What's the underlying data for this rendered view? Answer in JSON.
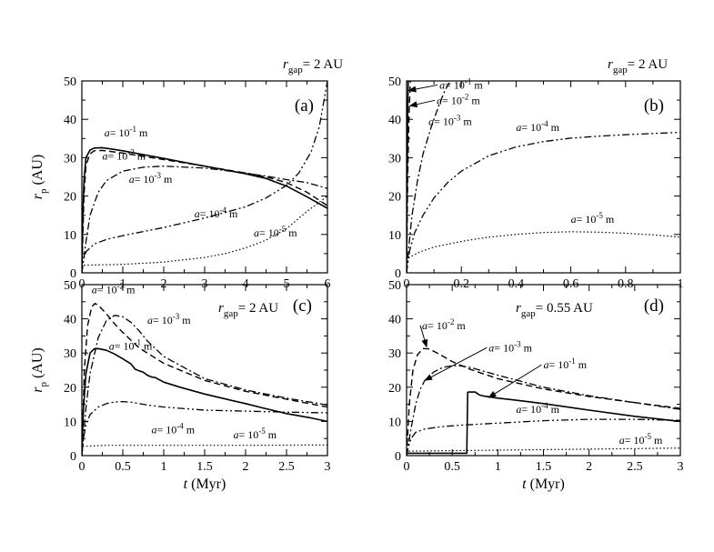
{
  "chart_data": [
    {
      "id": "a",
      "type": "line",
      "panel_label": "(a)",
      "rgap_label": "= 2 AU",
      "xlabel_var": "t",
      "xlabel_unit": "(Myr)",
      "ylabel_var": "r",
      "ylabel_sub": "p",
      "ylabel_unit": "(AU)",
      "xlim": [
        0,
        6
      ],
      "ylim": [
        0,
        50
      ],
      "xticks": [
        0,
        1,
        2,
        3,
        4,
        5,
        6
      ],
      "yticks": [
        0,
        10,
        20,
        30,
        40,
        50
      ],
      "show_xlabel": false,
      "show_ylabel": true,
      "series": [
        {
          "style": "solid",
          "x": [
            0,
            0.02,
            0.05,
            0.1,
            0.2,
            0.3,
            0.5,
            1,
            1.5,
            2,
            2.5,
            3,
            3.5,
            4,
            4.5,
            5,
            5.5,
            6
          ],
          "y": [
            0,
            14,
            24,
            30,
            32,
            32.5,
            32.6,
            31.8,
            30.8,
            29.8,
            28.8,
            27.8,
            26.8,
            25.8,
            24.6,
            22.6,
            19.8,
            16.8
          ]
        },
        {
          "style": "dashed",
          "x": [
            0,
            0.05,
            0.1,
            0.2,
            0.3,
            0.5,
            1,
            2,
            3,
            4,
            4.5,
            5,
            5.5,
            6
          ],
          "y": [
            0,
            20,
            28,
            31,
            31.8,
            31.9,
            31.2,
            29.5,
            27.8,
            26,
            25,
            23.5,
            21,
            17.5
          ]
        },
        {
          "style": "dashdot",
          "x": [
            0,
            0.05,
            0.1,
            0.2,
            0.4,
            0.6,
            1,
            1.5,
            2,
            3,
            4,
            4.5,
            5,
            5.5,
            6
          ],
          "y": [
            0,
            4,
            8,
            15,
            21,
            24,
            26.5,
            27.5,
            27.8,
            27.3,
            26,
            25.2,
            24.3,
            23.5,
            22
          ]
        },
        {
          "style": "dashdotdot",
          "x": [
            0,
            0.03,
            0.1,
            0.3,
            0.6,
            1,
            2,
            3,
            4,
            4.5,
            5,
            5.3,
            5.6,
            5.8,
            6
          ],
          "y": [
            0,
            3,
            5.5,
            7.5,
            8.7,
            9.7,
            11.8,
            14.3,
            17.2,
            19.5,
            22.8,
            26,
            31.5,
            38,
            50
          ]
        },
        {
          "style": "dotted",
          "x": [
            0,
            0.05,
            1,
            2,
            3,
            3.5,
            4,
            4.5,
            5,
            5.5,
            6
          ],
          "y": [
            1.2,
            2,
            2.2,
            2.8,
            4,
            5,
            6.5,
            8.5,
            11.5,
            16,
            20
          ]
        }
      ],
      "annotations": [
        {
          "pre": "a",
          "base": "= 10",
          "exp": "-1",
          "unit": " m",
          "x": 0.55,
          "y": 35.5
        },
        {
          "pre": "a",
          "base": "= 10",
          "exp": "-2",
          "unit": " m",
          "x": 0.5,
          "y": 29.5
        },
        {
          "pre": "a",
          "base": "= 10",
          "exp": "-3",
          "unit": " m",
          "x": 1.15,
          "y": 23.5
        },
        {
          "pre": "a",
          "base": "= 10",
          "exp": "-4",
          "unit": " m",
          "x": 2.75,
          "y": 14.5
        },
        {
          "pre": "a",
          "base": "= 10",
          "exp": "-5",
          "unit": " m",
          "x": 4.2,
          "y": 9.5
        }
      ]
    },
    {
      "id": "b",
      "type": "line",
      "panel_label": "(b)",
      "rgap_label": "= 2 AU",
      "xlabel_var": "t",
      "xlabel_unit": "(Myr)",
      "ylabel_var": "r",
      "ylabel_sub": "p",
      "ylabel_unit": "(AU)",
      "xlim": [
        0,
        1
      ],
      "ylim": [
        0,
        50
      ],
      "xticks": [
        0,
        0.2,
        0.4,
        0.6,
        0.8,
        1
      ],
      "yticks": [
        0,
        10,
        20,
        30,
        40,
        50
      ],
      "show_xlabel": false,
      "show_ylabel": false,
      "series": [
        {
          "style": "solid",
          "x": [
            0,
            0.001,
            0.0025,
            0.004,
            0.006
          ],
          "y": [
            0,
            15,
            30,
            42,
            50
          ]
        },
        {
          "style": "dashed",
          "x": [
            0,
            0.002,
            0.004,
            0.007,
            0.01,
            0.014
          ],
          "y": [
            0,
            12,
            24,
            35,
            43,
            50
          ]
        },
        {
          "style": "dashdot",
          "x": [
            0,
            0.01,
            0.02,
            0.04,
            0.06,
            0.09,
            0.12,
            0.14,
            0.16
          ],
          "y": [
            0,
            8,
            15,
            24,
            31,
            38,
            44,
            47.5,
            50
          ]
        },
        {
          "style": "dashdotdot",
          "x": [
            0,
            0.01,
            0.03,
            0.06,
            0.1,
            0.15,
            0.2,
            0.3,
            0.4,
            0.5,
            0.6,
            0.7,
            0.8,
            0.9,
            1
          ],
          "y": [
            0,
            5.5,
            10.5,
            15,
            19.5,
            23.5,
            26.5,
            30.5,
            32.8,
            34.2,
            35.1,
            35.6,
            36,
            36.3,
            36.6
          ]
        },
        {
          "style": "dotted",
          "x": [
            0,
            0.01,
            0.05,
            0.1,
            0.2,
            0.3,
            0.4,
            0.5,
            0.6,
            0.7,
            0.8,
            0.9,
            1
          ],
          "y": [
            2,
            4,
            5.5,
            6.7,
            8.2,
            9.3,
            10,
            10.5,
            10.7,
            10.6,
            10.3,
            9.9,
            9.3
          ]
        }
      ],
      "annotations": [
        {
          "pre": "a",
          "base": "= 10",
          "exp": "-1",
          "unit": " m",
          "x": 0.12,
          "y": 48,
          "arrow_to": [
            0.008,
            47.5
          ]
        },
        {
          "pre": "a",
          "base": "= 10",
          "exp": "-2",
          "unit": " m",
          "x": 0.11,
          "y": 44,
          "arrow_to": [
            0.012,
            43.5
          ]
        },
        {
          "pre": "a",
          "base": "= 10",
          "exp": "-3",
          "unit": " m",
          "x": 0.08,
          "y": 38.5
        },
        {
          "pre": "a",
          "base": "= 10",
          "exp": "-4",
          "unit": " m",
          "x": 0.4,
          "y": 37
        },
        {
          "pre": "a",
          "base": "= 10",
          "exp": "-5",
          "unit": " m",
          "x": 0.6,
          "y": 13
        }
      ]
    },
    {
      "id": "c",
      "type": "line",
      "panel_label": "(c)",
      "rgap_label": "= 2 AU",
      "xlabel_var": "t",
      "xlabel_unit": "(Myr)",
      "ylabel_var": "r",
      "ylabel_sub": "p",
      "ylabel_unit": "(AU)",
      "xlim": [
        0,
        3
      ],
      "ylim": [
        0,
        50
      ],
      "xticks": [
        0,
        0.5,
        1,
        1.5,
        2,
        2.5,
        3
      ],
      "yticks": [
        0,
        10,
        20,
        30,
        40,
        50
      ],
      "show_xlabel": true,
      "show_ylabel": true,
      "series": [
        {
          "style": "solid",
          "x": [
            0,
            0.02,
            0.05,
            0.1,
            0.15,
            0.2,
            0.3,
            0.4,
            0.5,
            0.6,
            0.65,
            0.7,
            0.75,
            0.8,
            0.85,
            0.9,
            1,
            1.2,
            1.5,
            1.8,
            2,
            2.2,
            2.5,
            2.8,
            3
          ],
          "y": [
            0,
            14,
            24,
            30,
            31.2,
            31.3,
            30.8,
            29.7,
            28.3,
            26.8,
            25.3,
            24.8,
            24.4,
            23.5,
            23,
            22.8,
            21.5,
            20,
            18,
            16.3,
            15.2,
            14,
            12.3,
            11,
            10
          ]
        },
        {
          "style": "dashed",
          "x": [
            0,
            0.03,
            0.07,
            0.12,
            0.16,
            0.2,
            0.3,
            0.4,
            0.5,
            0.7,
            1,
            1.5,
            2,
            2.5,
            3
          ],
          "y": [
            0,
            25,
            38,
            43.5,
            44.5,
            44,
            41.5,
            38.5,
            36,
            31.5,
            27,
            22,
            18.8,
            16.5,
            14.2
          ]
        },
        {
          "style": "dashdot",
          "x": [
            0,
            0.05,
            0.1,
            0.2,
            0.3,
            0.4,
            0.5,
            0.6,
            0.7,
            0.8,
            1,
            1.5,
            2,
            2.5,
            3
          ],
          "y": [
            0,
            14,
            24,
            34.5,
            39.5,
            41,
            40.6,
            39,
            36.5,
            33.5,
            29,
            22.5,
            19.2,
            16.8,
            14.8
          ]
        },
        {
          "style": "dashdotdot",
          "x": [
            0,
            0.02,
            0.05,
            0.1,
            0.2,
            0.3,
            0.4,
            0.5,
            0.6,
            0.7,
            0.8,
            1,
            1.5,
            2,
            2.5,
            3
          ],
          "y": [
            0,
            5,
            9,
            12,
            14.2,
            15.2,
            15.7,
            15.8,
            15.6,
            15.2,
            14.8,
            14.2,
            13.3,
            13,
            12.7,
            12.5
          ]
        },
        {
          "style": "dotted",
          "x": [
            0,
            0.02,
            0.3,
            1,
            2,
            3
          ],
          "y": [
            1.5,
            2.7,
            3,
            3,
            3,
            3.1
          ]
        }
      ],
      "annotations": [
        {
          "pre": "a",
          "base": "= 10",
          "exp": "-2",
          "unit": " m",
          "x": 0.12,
          "y": 47.5
        },
        {
          "pre": "a",
          "base": "= 10",
          "exp": "-3",
          "unit": " m",
          "x": 0.8,
          "y": 38.5
        },
        {
          "pre": "a",
          "base": "= 10",
          "exp": "-1",
          "unit": " m",
          "x": 0.33,
          "y": 31
        },
        {
          "pre": "a",
          "base": "= 10",
          "exp": "-4",
          "unit": " m",
          "x": 0.85,
          "y": 6.5
        },
        {
          "pre": "a",
          "base": "= 10",
          "exp": "-5",
          "unit": " m",
          "x": 1.85,
          "y": 5
        }
      ]
    },
    {
      "id": "d",
      "type": "line",
      "panel_label": "(d)",
      "rgap_label": "= 0.55 AU",
      "xlabel_var": "t",
      "xlabel_unit": "(Myr)",
      "ylabel_var": "r",
      "ylabel_sub": "p",
      "ylabel_unit": "(AU)",
      "xlim": [
        0,
        3
      ],
      "ylim": [
        0,
        50
      ],
      "xticks": [
        0,
        0.5,
        1,
        1.5,
        2,
        2.5,
        3
      ],
      "yticks": [
        0,
        10,
        20,
        30,
        40,
        50
      ],
      "show_xlabel": true,
      "show_ylabel": false,
      "series": [
        {
          "style": "solid",
          "x": [
            0,
            0.02,
            0.66,
            0.67,
            0.68,
            0.75,
            0.8,
            0.85,
            0.9,
            1,
            1.2,
            1.5,
            2,
            2.5,
            3
          ],
          "y": [
            0.5,
            0.7,
            0.7,
            18.5,
            18.6,
            18.6,
            17.7,
            17.4,
            17.2,
            16.8,
            16.2,
            15.2,
            13.3,
            11.5,
            10
          ]
        },
        {
          "style": "dashed",
          "x": [
            0,
            0.03,
            0.07,
            0.12,
            0.18,
            0.25,
            0.35,
            0.5,
            0.7,
            1,
            1.5,
            2,
            2.5,
            3
          ],
          "y": [
            0,
            15,
            25,
            29.5,
            31.3,
            31.2,
            29.8,
            27.5,
            25.2,
            22.5,
            19.5,
            17.3,
            15.5,
            13.8
          ]
        },
        {
          "style": "dashdot",
          "x": [
            0,
            0.05,
            0.1,
            0.15,
            0.2,
            0.3,
            0.4,
            0.5,
            0.6,
            0.7,
            1,
            1.5,
            2,
            2.5,
            3
          ],
          "y": [
            0,
            8,
            15,
            19.5,
            22,
            24.5,
            25.8,
            26.3,
            26.2,
            25.8,
            23.5,
            20,
            17.5,
            15.5,
            13.5
          ]
        },
        {
          "style": "dashdotdot",
          "x": [
            0,
            0.02,
            0.05,
            0.1,
            0.2,
            0.4,
            0.6,
            0.8,
            1,
            1.5,
            2,
            2.5,
            3
          ],
          "y": [
            0,
            2.5,
            5,
            6.8,
            7.8,
            8.5,
            8.9,
            9.2,
            9.5,
            10.2,
            10.6,
            10.6,
            10.3
          ]
        },
        {
          "style": "dotted",
          "x": [
            0,
            0.02,
            1,
            2,
            3
          ],
          "y": [
            0.5,
            1.3,
            1.6,
            1.9,
            2.2
          ]
        }
      ],
      "annotations": [
        {
          "pre": "a",
          "base": "= 10",
          "exp": "-2",
          "unit": " m",
          "x": 0.17,
          "y": 37,
          "arrow_to": [
            0.22,
            31.8
          ]
        },
        {
          "pre": "a",
          "base": "= 10",
          "exp": "-3",
          "unit": " m",
          "x": 0.9,
          "y": 30.5,
          "arrow_to": [
            0.2,
            22
          ]
        },
        {
          "pre": "a",
          "base": "= 10",
          "exp": "-1",
          "unit": " m",
          "x": 1.5,
          "y": 25.5,
          "arrow_to": [
            0.9,
            17
          ]
        },
        {
          "pre": "a",
          "base": "= 10",
          "exp": "-4",
          "unit": " m",
          "x": 1.2,
          "y": 12.5
        },
        {
          "pre": "a",
          "base": "= 10",
          "exp": "-5",
          "unit": " m",
          "x": 2.33,
          "y": 3.5
        }
      ]
    }
  ]
}
